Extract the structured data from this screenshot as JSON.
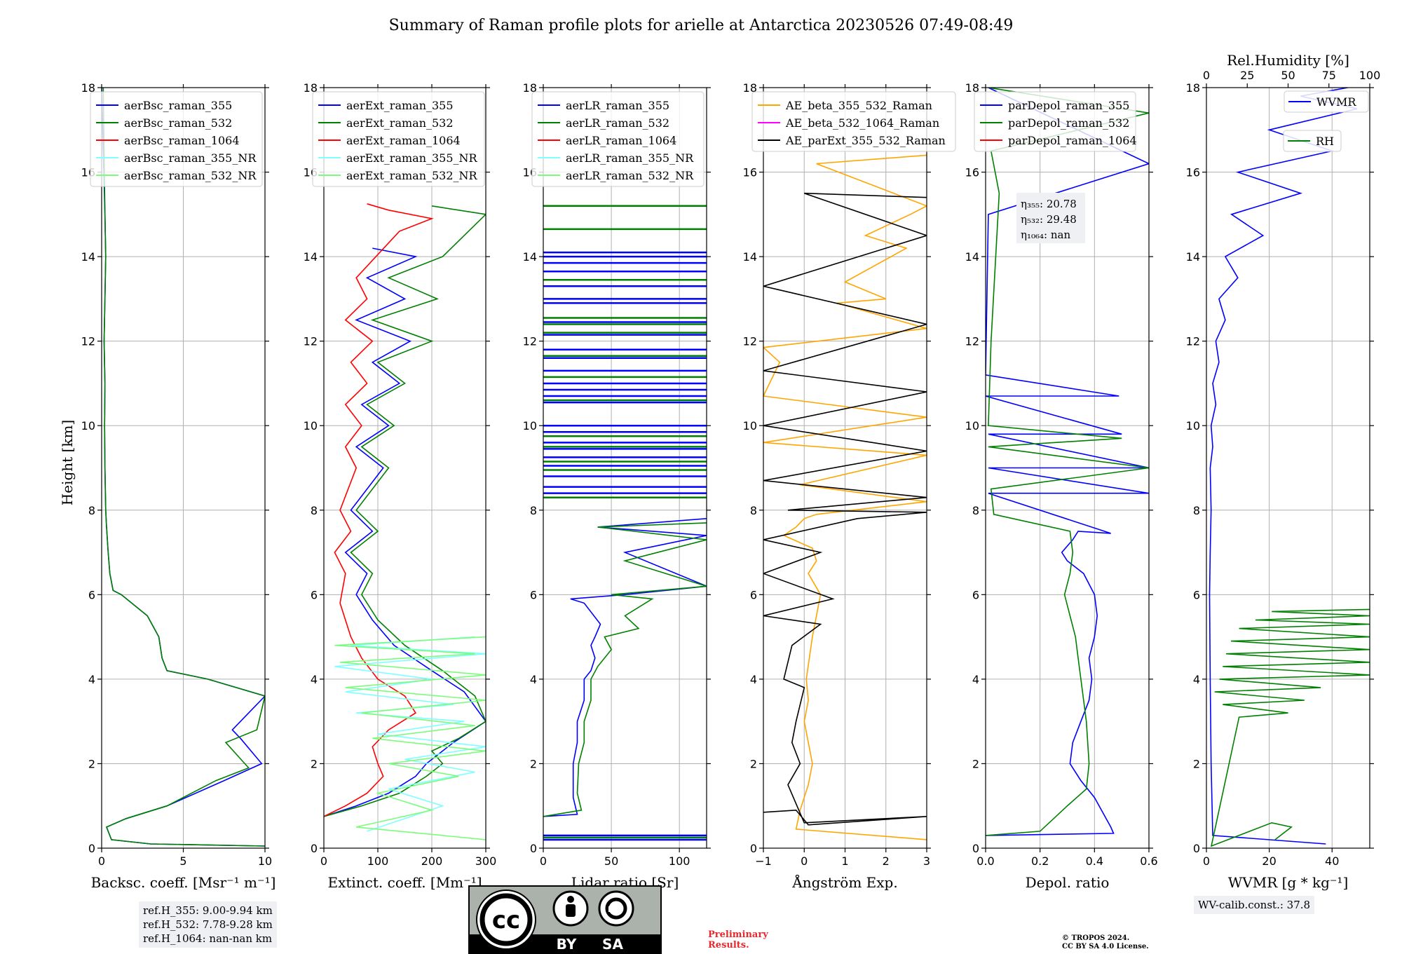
{
  "title": "Summary of Raman profile plots for arielle at Antarctica 20230526 07:49-08:49",
  "colors": {
    "blue": "#0000ff",
    "green": "#008000",
    "red": "#ff0000",
    "cyan": "#7fffff",
    "lightgreen": "#7cfc7c",
    "orange": "#ffa500",
    "magenta": "#ff00ff",
    "black": "#000000",
    "grid": "#b0b0b0"
  },
  "y_axis": {
    "label": "Height [km]",
    "ylim": [
      0,
      18
    ],
    "ticks": [
      0,
      2,
      4,
      6,
      8,
      10,
      12,
      14,
      16,
      18
    ]
  },
  "chart_data": [
    {
      "type": "line",
      "id": "backscatter",
      "xlabel": "Backsc. coeff. [Msr⁻¹ m⁻¹]",
      "xlim": [
        0,
        10
      ],
      "xticks": [
        0,
        5,
        10
      ],
      "legend": [
        "aerBsc_raman_355",
        "aerBsc_raman_532",
        "aerBsc_raman_1064",
        "aerBsc_raman_355_NR",
        "aerBsc_raman_532_NR"
      ],
      "series": [
        {
          "name": "aerBsc_raman_355",
          "color": "blue",
          "x": [
            10,
            3,
            0.6,
            0.3,
            1.5,
            4.0,
            7.5,
            9.8,
            8.5,
            8.0,
            10,
            6.5,
            4.0,
            3.7,
            3.5,
            2.8,
            1.2,
            0.7,
            0.5,
            0.4,
            0.3,
            0.25,
            0.2,
            0.18,
            0.2,
            0.15,
            0.2,
            0.25,
            0.2,
            0.0
          ],
          "y": [
            0.05,
            0.1,
            0.2,
            0.5,
            0.7,
            1.0,
            1.6,
            2.0,
            2.6,
            2.8,
            3.6,
            4.0,
            4.2,
            4.5,
            5.0,
            5.5,
            6.0,
            6.1,
            6.5,
            7.0,
            7.6,
            8.0,
            9.0,
            10.0,
            11.0,
            12.0,
            13.0,
            14.0,
            15.0,
            18.0
          ]
        },
        {
          "name": "aerBsc_raman_532",
          "color": "green",
          "x": [
            10,
            3,
            0.6,
            0.3,
            1.5,
            4.0,
            7.0,
            9.0,
            7.6,
            9.5,
            10,
            6.5,
            4.0,
            3.7,
            3.5,
            2.8,
            1.2,
            0.7,
            0.5,
            0.4,
            0.3,
            0.25,
            0.2,
            0.18,
            0.2,
            0.15,
            0.2,
            0.25,
            0.2,
            0.1
          ],
          "y": [
            0.05,
            0.1,
            0.2,
            0.5,
            0.7,
            1.0,
            1.6,
            1.9,
            2.5,
            2.8,
            3.6,
            4.0,
            4.2,
            4.5,
            5.0,
            5.5,
            6.0,
            6.1,
            6.5,
            7.0,
            7.6,
            8.0,
            9.0,
            10.0,
            11.0,
            12.0,
            13.0,
            14.0,
            15.0,
            18.0
          ]
        }
      ]
    },
    {
      "type": "line",
      "id": "extinction",
      "xlabel": "Extinct. coeff. [Mm⁻¹]",
      "xlim": [
        0,
        300
      ],
      "xticks": [
        0,
        100,
        200,
        300
      ],
      "legend": [
        "aerExt_raman_355",
        "aerExt_raman_532",
        "aerExt_raman_1064",
        "aerExt_raman_355_NR",
        "aerExt_raman_532_NR"
      ],
      "series": [
        {
          "name": "aerExt_raman_355",
          "color": "blue",
          "x": [
            0,
            60,
            120,
            170,
            190,
            210,
            240,
            300,
            260,
            200,
            130,
            90,
            60,
            80,
            40,
            90,
            50,
            110,
            60,
            120,
            70,
            140,
            90,
            160,
            60,
            150,
            80,
            170,
            90
          ],
          "y": [
            0.75,
            1.0,
            1.3,
            1.7,
            2.0,
            2.2,
            2.5,
            3.0,
            3.7,
            4.2,
            4.8,
            5.4,
            6.0,
            6.5,
            7.0,
            7.5,
            8.0,
            9.0,
            9.5,
            10.0,
            10.5,
            11.0,
            11.5,
            12.0,
            12.5,
            13.0,
            13.5,
            14.0,
            14.2
          ]
        },
        {
          "name": "aerExt_raman_532",
          "color": "green",
          "x": [
            0,
            70,
            140,
            190,
            220,
            200,
            250,
            300,
            280,
            220,
            150,
            100,
            70,
            90,
            50,
            100,
            60,
            120,
            70,
            130,
            80,
            150,
            100,
            200,
            90,
            210,
            120,
            220,
            300,
            200
          ],
          "y": [
            0.75,
            1.0,
            1.3,
            1.7,
            2.0,
            2.3,
            2.6,
            3.0,
            3.6,
            4.2,
            4.8,
            5.4,
            6.0,
            6.5,
            7.0,
            7.5,
            8.0,
            9.0,
            9.5,
            10.0,
            10.5,
            11.0,
            11.5,
            12.0,
            12.5,
            13.0,
            13.5,
            14.0,
            15.0,
            15.2
          ]
        },
        {
          "name": "aerExt_raman_1064",
          "color": "red",
          "x": [
            0,
            40,
            80,
            110,
            100,
            90,
            120,
            170,
            150,
            100,
            70,
            50,
            30,
            40,
            20,
            50,
            30,
            60,
            40,
            70,
            40,
            80,
            50,
            90,
            40,
            80,
            60,
            140,
            200,
            120,
            80
          ],
          "y": [
            0.75,
            1.0,
            1.3,
            1.7,
            2.0,
            2.4,
            2.8,
            3.2,
            3.6,
            4.0,
            4.5,
            5.0,
            5.8,
            6.5,
            7.0,
            7.5,
            8.0,
            9.0,
            9.5,
            10.0,
            10.5,
            11.0,
            11.5,
            12.0,
            12.5,
            13.0,
            13.5,
            14.6,
            14.9,
            15.1,
            15.25
          ]
        },
        {
          "name": "aerExt_raman_355_NR",
          "color": "cyan",
          "x": [
            80,
            220,
            120,
            280,
            150,
            300,
            100,
            260,
            60,
            240,
            40,
            200,
            20,
            300,
            50,
            280
          ],
          "y": [
            0.4,
            1.0,
            1.4,
            1.8,
            2.1,
            2.4,
            2.7,
            3.0,
            3.2,
            3.4,
            3.7,
            4.0,
            4.3,
            4.6,
            4.8,
            5.0
          ]
        },
        {
          "name": "aerExt_raman_532_NR",
          "color": "lightgreen",
          "x": [
            300,
            60,
            200,
            100,
            250,
            120,
            300,
            90,
            280,
            70,
            300,
            40,
            300,
            30,
            280,
            20,
            300
          ],
          "y": [
            0.2,
            0.5,
            0.9,
            1.3,
            1.7,
            2.0,
            2.3,
            2.6,
            2.9,
            3.2,
            3.5,
            3.8,
            4.1,
            4.4,
            4.6,
            4.8,
            5.0
          ]
        }
      ]
    },
    {
      "type": "line",
      "id": "lidar_ratio",
      "xlabel": "Lidar ratio [Sr]",
      "xlim": [
        0,
        120
      ],
      "xticks": [
        0,
        50,
        100
      ],
      "legend": [
        "aerLR_raman_355",
        "aerLR_raman_532",
        "aerLR_raman_1064",
        "aerLR_raman_355_NR",
        "aerLR_raman_532_NR"
      ],
      "series": [
        {
          "name": "aerLR_raman_355",
          "color": "blue",
          "x": [
            0,
            25,
            22,
            22,
            25,
            25,
            30,
            30,
            35,
            38,
            35,
            38,
            42,
            30,
            20,
            60,
            90,
            120,
            60,
            120,
            40,
            120
          ],
          "y": [
            0.75,
            0.8,
            1.2,
            2.0,
            2.5,
            3.0,
            3.5,
            4.0,
            4.2,
            4.5,
            4.8,
            5.0,
            5.3,
            5.8,
            5.9,
            6.0,
            6.1,
            6.2,
            7.0,
            7.4,
            7.6,
            7.8
          ]
        },
        {
          "name": "aerLR_raman_532",
          "color": "green",
          "x": [
            0,
            28,
            25,
            26,
            30,
            30,
            35,
            35,
            40,
            50,
            45,
            70,
            60,
            80,
            50,
            120,
            60,
            120,
            40,
            120
          ],
          "y": [
            0.75,
            0.9,
            1.3,
            2.0,
            2.5,
            3.0,
            3.5,
            4.0,
            4.3,
            4.7,
            5.0,
            5.2,
            5.5,
            5.9,
            6.0,
            6.2,
            6.8,
            7.3,
            7.6,
            7.7
          ]
        }
      ],
      "horizontal_lines_355": [
        0.2,
        0.3,
        8.4,
        8.55,
        8.8,
        9.05,
        9.25,
        9.45,
        9.6,
        9.85,
        10.0,
        10.55,
        10.7,
        10.85,
        11.0,
        11.3,
        11.6,
        11.8,
        12.15,
        12.45,
        12.9,
        13.0,
        13.3,
        13.65,
        13.85,
        14.0,
        14.1
      ],
      "horizontal_lines_532": [
        0.25,
        8.3,
        8.95,
        9.15,
        9.5,
        9.75,
        10.6,
        11.15,
        11.65,
        12.2,
        12.4,
        12.55,
        13.45,
        14.65,
        15.2
      ]
    },
    {
      "type": "line",
      "id": "angstrom",
      "xlabel": "Ångström Exp.",
      "xlim": [
        -1,
        3
      ],
      "xticks": [
        -1,
        0,
        1,
        2,
        3
      ],
      "legend": [
        "AE_beta_355_532_Raman",
        "AE_beta_532_1064_Raman",
        "AE_parExt_355_532_Raman"
      ],
      "series": [
        {
          "name": "AE_beta_355_532_Raman",
          "color": "orange",
          "x": [
            3,
            -0.2,
            -0.1,
            0.1,
            0.2,
            0.1,
            0.0,
            0.1,
            0.05,
            0.2,
            0.4,
            0.1,
            0.3,
            0.2,
            -0.5,
            -0.2,
            0.0,
            0.3,
            3,
            -0.1,
            3,
            -1,
            3,
            -1,
            -0.6,
            -1,
            3,
            0.8,
            2,
            1.0,
            2.5,
            1.5,
            2.6,
            3,
            0.3,
            3
          ],
          "y": [
            0.2,
            0.45,
            0.9,
            1.5,
            2.0,
            2.5,
            3.0,
            3.5,
            4.0,
            5.0,
            6.0,
            6.5,
            6.8,
            7.1,
            7.4,
            7.6,
            7.8,
            7.9,
            8.2,
            8.6,
            9.3,
            9.6,
            10.2,
            10.7,
            11.5,
            11.85,
            12.3,
            12.9,
            13.0,
            13.4,
            14.2,
            14.5,
            15.0,
            15.2,
            16.2,
            16.4
          ]
        },
        {
          "name": "AE_parExt_355_532_Raman",
          "color": "black",
          "x": [
            -1,
            -0.2,
            0.1,
            3,
            0.0,
            -0.4,
            -0.1,
            -0.3,
            -0.2,
            0.0,
            -0.5,
            -0.3,
            0.4,
            -1,
            0.7,
            -1,
            0.4,
            -1,
            1.3,
            3,
            -0.4,
            3,
            -1,
            3,
            -1,
            3,
            -1,
            3,
            -1,
            3,
            0.0,
            3
          ],
          "y": [
            0.85,
            0.9,
            0.55,
            0.75,
            0.6,
            1.5,
            2.0,
            2.5,
            3.0,
            3.8,
            4.0,
            4.8,
            5.3,
            5.5,
            5.9,
            6.5,
            7.0,
            7.3,
            7.8,
            7.95,
            8.0,
            8.3,
            8.7,
            9.4,
            10.0,
            10.8,
            11.3,
            12.4,
            13.3,
            14.5,
            15.5,
            15.4
          ]
        }
      ]
    },
    {
      "type": "line",
      "id": "depol",
      "xlabel": "Depol. ratio",
      "xlim": [
        0,
        0.6
      ],
      "xticks": [
        0.0,
        0.2,
        0.4,
        0.6
      ],
      "legend": [
        "parDepol_raman_355",
        "parDepol_raman_532",
        "parDepol_raman_1064"
      ],
      "annotation": [
        "η₃₅₅: 20.78",
        "η₅₃₂: 29.48",
        "η₁₀₆₄: nan"
      ],
      "series": [
        {
          "name": "parDepol_raman_355",
          "color": "blue",
          "x": [
            0.0,
            0.47,
            0.46,
            0.4,
            0.35,
            0.31,
            0.32,
            0.35,
            0.38,
            0.39,
            0.38,
            0.4,
            0.41,
            0.4,
            0.36,
            0.3,
            0.28,
            0.32,
            0.34,
            0.46,
            0.01,
            0.6,
            0.01,
            0.6,
            0.01,
            0.5,
            0.0,
            0.49,
            0.0,
            0.01,
            0.6,
            0.01
          ],
          "y": [
            0.3,
            0.35,
            0.5,
            1.2,
            1.6,
            2.0,
            2.5,
            3.0,
            3.5,
            4.0,
            4.5,
            5.0,
            5.5,
            6.0,
            6.5,
            6.8,
            7.0,
            7.3,
            7.5,
            7.45,
            8.4,
            8.4,
            9.0,
            9.0,
            9.8,
            9.8,
            10.7,
            10.7,
            11.2,
            15.0,
            16.2,
            18.0
          ]
        },
        {
          "name": "parDepol_raman_532",
          "color": "green",
          "x": [
            0.0,
            0.2,
            0.3,
            0.37,
            0.38,
            0.37,
            0.36,
            0.35,
            0.34,
            0.33,
            0.31,
            0.29,
            0.31,
            0.32,
            0.31,
            0.03,
            0.02,
            0.6,
            0.01,
            0.5,
            0.01,
            0.02,
            0.05,
            0.02,
            0.6,
            0.01
          ],
          "y": [
            0.3,
            0.4,
            1.0,
            1.4,
            2.0,
            3.0,
            3.5,
            4.0,
            4.5,
            5.0,
            5.5,
            6.0,
            6.5,
            7.0,
            7.5,
            7.9,
            8.5,
            9.0,
            9.5,
            9.7,
            10.0,
            12.0,
            15.5,
            16.5,
            17.4,
            18.0
          ]
        }
      ]
    },
    {
      "type": "line",
      "id": "wvmr",
      "xlabel": "WVMR [g * kg⁻¹]",
      "top_xlabel": "Rel.Humidity [%]",
      "xlim": [
        0,
        52
      ],
      "xticks": [
        0,
        20,
        40
      ],
      "top_xlim": [
        0,
        100
      ],
      "top_xticks": [
        0,
        25,
        50,
        75,
        100
      ],
      "legend": [
        "WVMR",
        "RH"
      ],
      "series": [
        {
          "name": "WVMR",
          "color": "blue",
          "x": [
            38,
            2,
            1.5,
            1.2,
            1.0,
            1.2,
            1.5,
            1.2,
            2,
            1.5,
            3,
            2,
            4,
            3,
            6,
            4,
            10,
            6,
            18,
            8,
            30,
            10,
            40,
            20,
            48,
            30,
            45
          ],
          "y": [
            0.1,
            0.3,
            2.0,
            4.0,
            6.0,
            7.0,
            8.0,
            9.0,
            9.5,
            10.0,
            10.5,
            11.0,
            11.5,
            12.0,
            12.5,
            13.0,
            13.5,
            14.0,
            14.5,
            15.0,
            15.5,
            16.0,
            16.5,
            17.0,
            17.5,
            17.8,
            18.0
          ]
        },
        {
          "name": "RH",
          "color": "green",
          "x": [
            42,
            52,
            40,
            3,
            20,
            50,
            10,
            60,
            5,
            70,
            8,
            100,
            10,
            100,
            12,
            100,
            15,
            100,
            20,
            100,
            30,
            100,
            40,
            100
          ],
          "y": [
            0.2,
            0.5,
            0.6,
            0.05,
            3.1,
            3.2,
            3.4,
            3.5,
            3.7,
            3.8,
            4.0,
            4.1,
            4.3,
            4.4,
            4.6,
            4.7,
            4.9,
            5.0,
            5.2,
            5.3,
            5.4,
            5.5,
            5.6,
            5.65
          ]
        }
      ]
    }
  ],
  "ref_box": [
    "ref.H_355: 9.00-9.94 km",
    "ref.H_532: 7.78-9.28 km",
    "ref.H_1064: nan-nan km"
  ],
  "wv_calib": "WV-calib.const.: 37.8",
  "preliminary": [
    "Preliminary",
    "Results."
  ],
  "copyright": [
    "© TROPOS 2024.",
    "CC BY SA 4.0 License."
  ],
  "cc_badge": {
    "by": "BY",
    "sa": "SA",
    "cc": "cc"
  }
}
